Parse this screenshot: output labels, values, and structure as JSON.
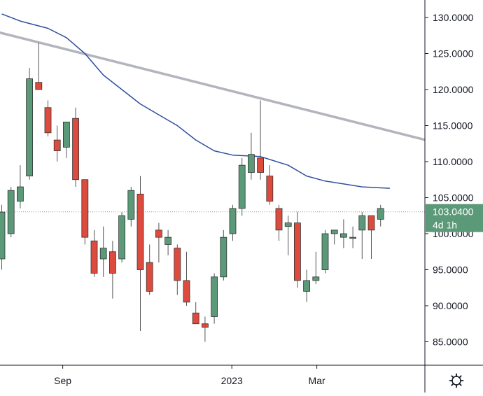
{
  "chart_data": {
    "type": "candlestick",
    "title": "",
    "xlabel": "",
    "ylabel": "",
    "ylim": [
      82,
      133
    ],
    "y_ticks": [
      "130.0000",
      "125.0000",
      "120.0000",
      "115.0000",
      "110.0000",
      "105.0000",
      "100.0000",
      "95.0000",
      "90.0000",
      "85.0000"
    ],
    "y_tick_values": [
      130,
      125,
      120,
      115,
      110,
      105,
      100,
      95,
      90,
      85
    ],
    "x_ticks": [
      {
        "label": "Sep",
        "index": 6.6
      },
      {
        "label": "2023",
        "index": 24.9
      },
      {
        "label": "Mar",
        "index": 34.1
      }
    ],
    "current_price": {
      "value": 103.04,
      "label": "103.0400",
      "sublabel": "4d 1h",
      "color": "#5b9a78"
    },
    "colors": {
      "up": "#5b9a78",
      "down": "#dd4b3e",
      "wick": "#555555",
      "ma": "#2f4f9e",
      "trend": "#b2b5be",
      "axis": "#131722",
      "dotted": "#9598a1"
    },
    "candles": [
      {
        "o": 96.5,
        "h": 104,
        "l": 95.0,
        "c": 103.0
      },
      {
        "o": 100.0,
        "h": 106.5,
        "l": 99.5,
        "c": 106.0
      },
      {
        "o": 104.5,
        "h": 109.5,
        "l": 103.5,
        "c": 106.5
      },
      {
        "o": 108.0,
        "h": 123.0,
        "l": 107.5,
        "c": 121.5
      },
      {
        "o": 121.0,
        "h": 126.5,
        "l": 120.0,
        "c": 120.0
      },
      {
        "o": 117.5,
        "h": 118.5,
        "l": 113.5,
        "c": 114.0
      },
      {
        "o": 113.0,
        "h": 115.0,
        "l": 110.0,
        "c": 111.5
      },
      {
        "o": 112.0,
        "h": 115.5,
        "l": 110.5,
        "c": 115.5
      },
      {
        "o": 116.0,
        "h": 117.5,
        "l": 106.5,
        "c": 107.5
      },
      {
        "o": 107.5,
        "h": 107.5,
        "l": 98.5,
        "c": 99.5
      },
      {
        "o": 99.0,
        "h": 100.5,
        "l": 94.0,
        "c": 94.5
      },
      {
        "o": 96.5,
        "h": 101.0,
        "l": 94.0,
        "c": 98.0
      },
      {
        "o": 97.5,
        "h": 99.0,
        "l": 91.0,
        "c": 94.5
      },
      {
        "o": 96.5,
        "h": 103.0,
        "l": 96.0,
        "c": 102.5
      },
      {
        "o": 102.0,
        "h": 106.5,
        "l": 101.0,
        "c": 106.0
      },
      {
        "o": 105.5,
        "h": 108.0,
        "l": 86.5,
        "c": 95.0
      },
      {
        "o": 96.0,
        "h": 98.5,
        "l": 91.5,
        "c": 92.0
      },
      {
        "o": 100.5,
        "h": 101.5,
        "l": 96.0,
        "c": 99.5
      },
      {
        "o": 98.5,
        "h": 100.5,
        "l": 97.0,
        "c": 99.5
      },
      {
        "o": 98.0,
        "h": 98.5,
        "l": 91.5,
        "c": 93.5
      },
      {
        "o": 93.5,
        "h": 97.5,
        "l": 90.0,
        "c": 90.5
      },
      {
        "o": 89.0,
        "h": 90.5,
        "l": 87.5,
        "c": 87.5
      },
      {
        "o": 87.5,
        "h": 88.5,
        "l": 85.0,
        "c": 87.0
      },
      {
        "o": 88.5,
        "h": 94.5,
        "l": 87.5,
        "c": 94.0
      },
      {
        "o": 94.0,
        "h": 100.5,
        "l": 93.5,
        "c": 99.5
      },
      {
        "o": 100.0,
        "h": 104.0,
        "l": 99.0,
        "c": 103.5
      },
      {
        "o": 103.5,
        "h": 110.5,
        "l": 102.5,
        "c": 109.5
      },
      {
        "o": 108.5,
        "h": 114.0,
        "l": 107.5,
        "c": 111.0
      },
      {
        "o": 110.5,
        "h": 118.5,
        "l": 107.5,
        "c": 108.5
      },
      {
        "o": 108.0,
        "h": 109.5,
        "l": 104.0,
        "c": 104.5
      },
      {
        "o": 103.5,
        "h": 104.0,
        "l": 99.0,
        "c": 100.5
      },
      {
        "o": 101.0,
        "h": 102.5,
        "l": 97.0,
        "c": 101.5
      },
      {
        "o": 101.5,
        "h": 103.0,
        "l": 92.5,
        "c": 93.5
      },
      {
        "o": 92.0,
        "h": 95.0,
        "l": 90.5,
        "c": 93.5
      },
      {
        "o": 93.5,
        "h": 97.5,
        "l": 93.0,
        "c": 94.0
      },
      {
        "o": 95.0,
        "h": 100.5,
        "l": 94.5,
        "c": 100.0
      },
      {
        "o": 100.0,
        "h": 100.5,
        "l": 98.5,
        "c": 100.5
      },
      {
        "o": 99.5,
        "h": 102.0,
        "l": 98.0,
        "c": 100.0
      },
      {
        "o": 99.5,
        "h": 101.0,
        "l": 98.0,
        "c": 99.5
      },
      {
        "o": 100.5,
        "h": 103.0,
        "l": 96.5,
        "c": 102.5
      },
      {
        "o": 102.5,
        "h": 102.5,
        "l": 96.5,
        "c": 100.5
      },
      {
        "o": 102.0,
        "h": 104.0,
        "l": 101.0,
        "c": 103.5
      }
    ],
    "moving_average": [
      {
        "i": 0,
        "v": 130.5
      },
      {
        "i": 2,
        "v": 129.5
      },
      {
        "i": 5,
        "v": 128.5
      },
      {
        "i": 7,
        "v": 127.2
      },
      {
        "i": 9,
        "v": 125.0
      },
      {
        "i": 11,
        "v": 122.0
      },
      {
        "i": 13,
        "v": 120.0
      },
      {
        "i": 15,
        "v": 118.0
      },
      {
        "i": 17,
        "v": 116.5
      },
      {
        "i": 19,
        "v": 115.0
      },
      {
        "i": 21,
        "v": 113.0
      },
      {
        "i": 23,
        "v": 111.5
      },
      {
        "i": 25,
        "v": 110.9
      },
      {
        "i": 28,
        "v": 110.7
      },
      {
        "i": 31,
        "v": 109.5
      },
      {
        "i": 33,
        "v": 108.0
      },
      {
        "i": 35,
        "v": 107.3
      },
      {
        "i": 37,
        "v": 106.9
      },
      {
        "i": 39,
        "v": 106.5
      },
      {
        "i": 42,
        "v": 106.3
      }
    ],
    "trendline": [
      {
        "i": -0.5,
        "v": 128.0
      },
      {
        "i": 46.5,
        "v": 112.8
      }
    ]
  }
}
